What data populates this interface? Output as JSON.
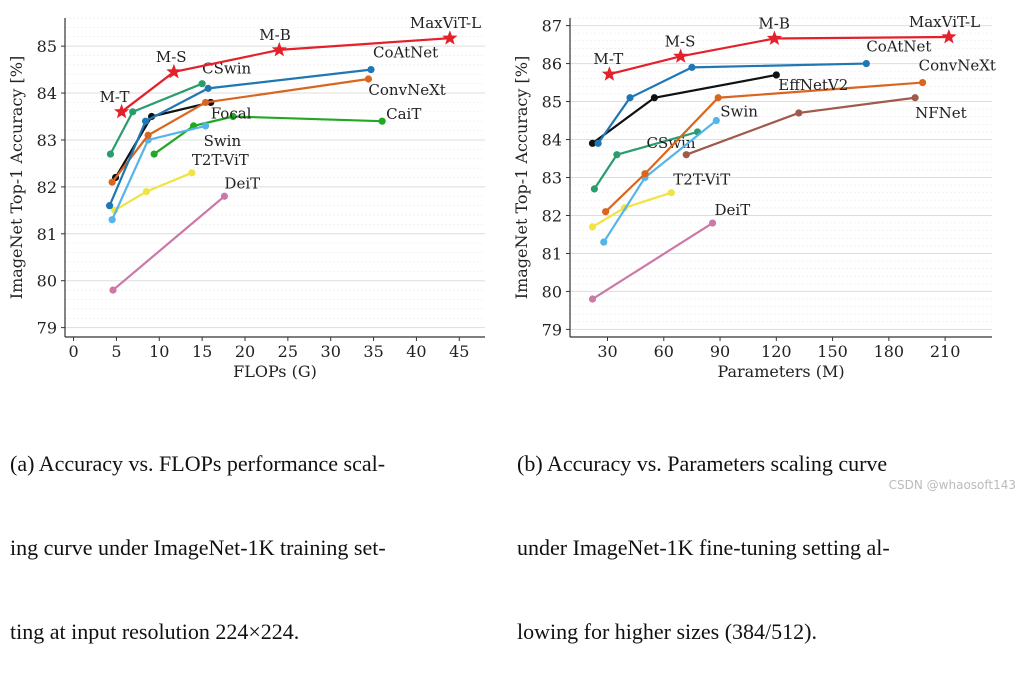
{
  "chart_data": [
    {
      "type": "line",
      "xlabel": "FLOPs (G)",
      "ylabel": "ImageNet Top-1 Accuracy [%]",
      "xlim": [
        -1,
        48
      ],
      "ylim": [
        78.8,
        85.6
      ],
      "xticks": [
        0,
        5,
        10,
        15,
        20,
        25,
        30,
        35,
        40,
        45
      ],
      "yticks": [
        79,
        80,
        81,
        82,
        83,
        84,
        85
      ],
      "grid": true,
      "series": [
        {
          "name": "MaxViT",
          "color": "#e4202a",
          "marker": "star",
          "point_labels": [
            "M-T",
            "M-S",
            "M-B",
            "MaxViT-L"
          ],
          "x": [
            5.6,
            11.7,
            24,
            43.9
          ],
          "y": [
            83.6,
            84.45,
            84.92,
            85.17
          ]
        },
        {
          "name": "CoAtNet",
          "color": "#1f77b4",
          "x": [
            4.2,
            8.4,
            15.7,
            34.7
          ],
          "y": [
            81.6,
            83.4,
            84.1,
            84.5
          ]
        },
        {
          "name": "ConvNeXt",
          "color": "#d9661f",
          "x": [
            4.5,
            8.7,
            15.4,
            34.4
          ],
          "y": [
            82.1,
            83.1,
            83.8,
            84.3
          ]
        },
        {
          "name": "CSwin",
          "color": "#2a9d6e",
          "x": [
            4.3,
            6.9,
            15
          ],
          "y": [
            82.7,
            83.6,
            84.2
          ]
        },
        {
          "name": "Focal",
          "color": "#111111",
          "x": [
            4.9,
            9.1,
            16
          ],
          "y": [
            82.2,
            83.5,
            83.8
          ]
        },
        {
          "name": "Swin",
          "color": "#56b4e9",
          "x": [
            4.5,
            8.7,
            15.4
          ],
          "y": [
            81.3,
            83.0,
            83.3
          ]
        },
        {
          "name": "CaiT",
          "color": "#22a822",
          "x": [
            9.4,
            14,
            18.6,
            36
          ],
          "y": [
            82.7,
            83.3,
            83.5,
            83.4
          ]
        },
        {
          "name": "T2T-ViT",
          "color": "#f0e442",
          "x": [
            4.8,
            8.5,
            13.8
          ],
          "y": [
            81.5,
            81.9,
            82.3
          ]
        },
        {
          "name": "DeiT",
          "color": "#cc79a7",
          "x": [
            4.6,
            17.6
          ],
          "y": [
            79.8,
            81.8
          ]
        }
      ]
    },
    {
      "type": "line",
      "xlabel": "Parameters (M)",
      "ylabel": "ImageNet Top-1 Accuracy [%]",
      "xlim": [
        10,
        235
      ],
      "ylim": [
        78.8,
        87.2
      ],
      "xticks": [
        30,
        60,
        90,
        120,
        150,
        180,
        210
      ],
      "yticks": [
        79,
        80,
        81,
        82,
        83,
        84,
        85,
        86,
        87
      ],
      "grid": true,
      "series": [
        {
          "name": "MaxViT",
          "color": "#e4202a",
          "marker": "star",
          "point_labels": [
            "M-T",
            "M-S",
            "M-B",
            "MaxViT-L"
          ],
          "x": [
            31,
            69,
            119,
            212
          ],
          "y": [
            85.72,
            86.19,
            86.66,
            86.7
          ]
        },
        {
          "name": "CoAtNet",
          "color": "#1f77b4",
          "x": [
            25,
            42,
            75,
            168
          ],
          "y": [
            83.9,
            85.1,
            85.9,
            86.0
          ]
        },
        {
          "name": "EffNetV2",
          "color": "#111111",
          "x": [
            22,
            55,
            120
          ],
          "y": [
            83.9,
            85.1,
            85.7
          ]
        },
        {
          "name": "ConvNeXt",
          "color": "#d9661f",
          "x": [
            29,
            50,
            89,
            198
          ],
          "y": [
            82.1,
            83.1,
            85.1,
            85.5
          ]
        },
        {
          "name": "NFNet",
          "color": "#a0594a",
          "x": [
            72,
            132,
            194
          ],
          "y": [
            83.6,
            84.7,
            85.1
          ]
        },
        {
          "name": "Swin",
          "color": "#56b4e9",
          "x": [
            28,
            50,
            88
          ],
          "y": [
            81.3,
            83.0,
            84.5
          ]
        },
        {
          "name": "CSwin",
          "color": "#2a9d6e",
          "x": [
            23,
            35,
            78
          ],
          "y": [
            82.7,
            83.6,
            84.2
          ]
        },
        {
          "name": "T2T-ViT",
          "color": "#f0e442",
          "x": [
            22,
            39,
            64
          ],
          "y": [
            81.7,
            82.2,
            82.6
          ]
        },
        {
          "name": "DeiT",
          "color": "#cc79a7",
          "x": [
            22,
            86
          ],
          "y": [
            79.8,
            81.8
          ]
        }
      ]
    }
  ],
  "captions": {
    "a": [
      "(a) Accuracy vs. FLOPs performance scal-",
      "ing curve under ImageNet-1K training set-",
      "ting at input resolution 224×224."
    ],
    "b": [
      "(b) Accuracy vs. Parameters scaling curve",
      "under ImageNet-1K fine-tuning setting al-",
      "lowing for higher sizes (384/512)."
    ]
  },
  "watermark": "CSDN @whaosoft143"
}
